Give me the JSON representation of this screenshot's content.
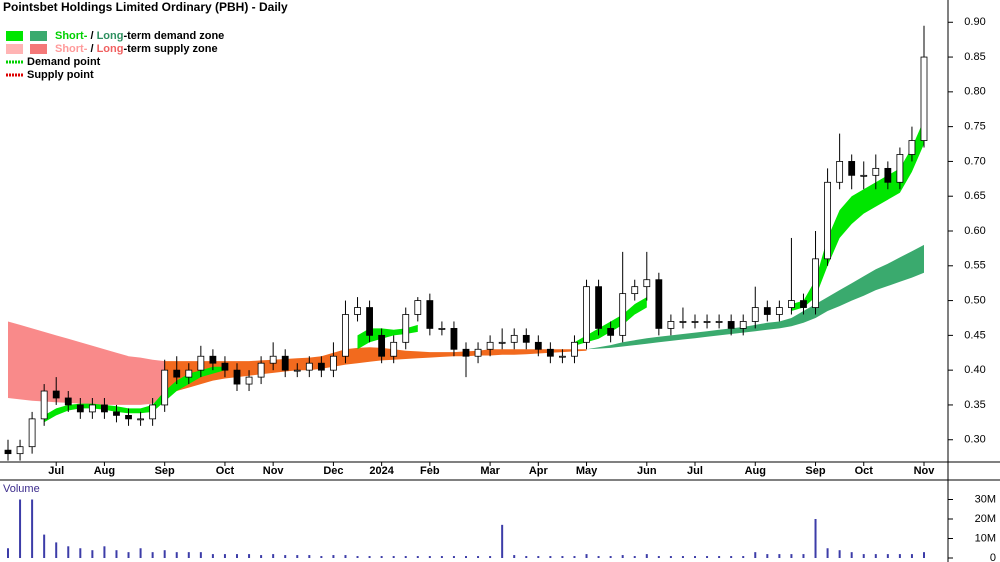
{
  "chart_data": {
    "type": "candlestick",
    "title": "Pointsbet Holdings Limited Ordinary (PBH) - Daily",
    "categories": [
      null,
      null,
      null,
      null,
      "Jul",
      null,
      null,
      null,
      "Aug",
      null,
      null,
      null,
      null,
      "Sep",
      null,
      null,
      null,
      null,
      "Oct",
      null,
      null,
      null,
      "Nov",
      null,
      null,
      null,
      null,
      "Dec",
      null,
      null,
      null,
      "2024",
      null,
      null,
      null,
      "Feb",
      null,
      null,
      null,
      null,
      "Mar",
      null,
      null,
      null,
      "Apr",
      null,
      null,
      null,
      "May",
      null,
      null,
      null,
      null,
      "Jun",
      null,
      null,
      null,
      "Jul",
      null,
      null,
      null,
      null,
      "Aug",
      null,
      null,
      null,
      null,
      "Sep",
      null,
      null,
      null,
      "Oct",
      null,
      null,
      null,
      null,
      "Nov"
    ],
    "open": [
      0.285,
      0.28,
      0.29,
      0.33,
      0.37,
      0.36,
      0.35,
      0.34,
      0.35,
      0.34,
      0.335,
      0.33,
      0.33,
      0.35,
      0.4,
      0.39,
      0.4,
      0.42,
      0.41,
      0.4,
      0.38,
      0.39,
      0.41,
      0.42,
      0.4,
      0.4,
      0.41,
      0.4,
      0.42,
      0.48,
      0.49,
      0.45,
      0.42,
      0.44,
      0.48,
      0.5,
      0.46,
      0.46,
      0.43,
      0.42,
      0.43,
      0.44,
      0.44,
      0.45,
      0.44,
      0.43,
      0.42,
      0.42,
      0.44,
      0.52,
      0.46,
      0.45,
      0.51,
      0.52,
      0.53,
      0.46,
      0.47,
      0.47,
      0.47,
      0.47,
      0.47,
      0.46,
      0.47,
      0.49,
      0.48,
      0.49,
      0.5,
      0.49,
      0.56,
      0.67,
      0.7,
      0.68,
      0.68,
      0.69,
      0.67,
      0.71,
      0.73
    ],
    "high": [
      0.3,
      0.3,
      0.34,
      0.38,
      0.39,
      0.37,
      0.36,
      0.36,
      0.36,
      0.35,
      0.345,
      0.34,
      0.36,
      0.415,
      0.42,
      0.41,
      0.435,
      0.43,
      0.42,
      0.41,
      0.4,
      0.42,
      0.44,
      0.43,
      0.41,
      0.42,
      0.42,
      0.44,
      0.5,
      0.505,
      0.5,
      0.46,
      0.45,
      0.49,
      0.505,
      0.51,
      0.47,
      0.47,
      0.44,
      0.44,
      0.45,
      0.46,
      0.46,
      0.46,
      0.45,
      0.44,
      0.43,
      0.45,
      0.53,
      0.53,
      0.47,
      0.57,
      0.53,
      0.57,
      0.54,
      0.48,
      0.49,
      0.48,
      0.48,
      0.48,
      0.48,
      0.48,
      0.52,
      0.5,
      0.5,
      0.59,
      0.51,
      0.6,
      0.69,
      0.74,
      0.71,
      0.7,
      0.71,
      0.7,
      0.72,
      0.75,
      0.895
    ],
    "low": [
      0.27,
      0.27,
      0.28,
      0.32,
      0.35,
      0.34,
      0.33,
      0.33,
      0.33,
      0.325,
      0.32,
      0.32,
      0.32,
      0.34,
      0.38,
      0.38,
      0.39,
      0.4,
      0.39,
      0.37,
      0.37,
      0.38,
      0.4,
      0.39,
      0.39,
      0.39,
      0.39,
      0.39,
      0.41,
      0.47,
      0.44,
      0.41,
      0.41,
      0.43,
      0.47,
      0.45,
      0.45,
      0.42,
      0.39,
      0.41,
      0.42,
      0.43,
      0.43,
      0.43,
      0.42,
      0.41,
      0.41,
      0.41,
      0.43,
      0.45,
      0.44,
      0.44,
      0.5,
      0.5,
      0.45,
      0.45,
      0.46,
      0.46,
      0.46,
      0.46,
      0.45,
      0.45,
      0.46,
      0.47,
      0.47,
      0.48,
      0.48,
      0.48,
      0.55,
      0.66,
      0.66,
      0.66,
      0.66,
      0.66,
      0.66,
      0.7,
      0.72
    ],
    "close": [
      0.28,
      0.29,
      0.33,
      0.37,
      0.36,
      0.35,
      0.34,
      0.35,
      0.34,
      0.335,
      0.33,
      0.33,
      0.35,
      0.4,
      0.39,
      0.4,
      0.42,
      0.41,
      0.4,
      0.38,
      0.39,
      0.41,
      0.42,
      0.4,
      0.4,
      0.41,
      0.4,
      0.42,
      0.48,
      0.49,
      0.45,
      0.42,
      0.44,
      0.48,
      0.5,
      0.46,
      0.46,
      0.43,
      0.42,
      0.43,
      0.44,
      0.44,
      0.45,
      0.44,
      0.43,
      0.42,
      0.42,
      0.44,
      0.52,
      0.46,
      0.45,
      0.51,
      0.52,
      0.53,
      0.46,
      0.47,
      0.47,
      0.47,
      0.47,
      0.47,
      0.46,
      0.47,
      0.49,
      0.48,
      0.49,
      0.5,
      0.49,
      0.56,
      0.67,
      0.7,
      0.68,
      0.68,
      0.69,
      0.67,
      0.71,
      0.73,
      0.85
    ],
    "up_color": "#ffffff",
    "down_color": "#000000",
    "bands": [
      {
        "color": "#f98a8a",
        "upper": [
          0.47,
          0.465,
          0.46,
          0.455,
          0.45,
          0.445,
          0.44,
          0.435,
          0.43,
          0.425,
          0.42,
          0.418,
          0.415,
          0.413,
          null,
          null,
          null,
          null,
          null,
          null,
          null,
          null,
          null,
          null,
          null,
          null,
          null,
          null,
          null,
          null,
          null,
          null,
          null,
          null,
          null,
          null,
          null,
          null,
          null,
          null,
          null,
          null,
          null,
          null,
          null,
          null,
          null,
          null,
          null,
          null,
          null,
          null,
          null,
          null,
          null,
          null,
          null,
          null,
          null,
          null,
          null,
          null,
          null,
          null,
          null,
          null,
          null,
          null,
          null,
          null,
          null,
          null,
          null,
          null,
          null,
          null,
          null
        ],
        "lower": [
          0.36,
          0.358,
          0.356,
          0.355,
          0.354,
          0.353,
          0.352,
          0.351,
          0.35,
          0.35,
          0.35,
          0.35,
          0.352,
          0.36,
          null,
          null,
          null,
          null,
          null,
          null,
          null,
          null,
          null,
          null,
          null,
          null,
          null,
          null,
          null,
          null,
          null,
          null,
          null,
          null,
          null,
          null,
          null,
          null,
          null,
          null,
          null,
          null,
          null,
          null,
          null,
          null,
          null,
          null,
          null,
          null,
          null,
          null,
          null,
          null,
          null,
          null,
          null,
          null,
          null,
          null,
          null,
          null,
          null,
          null,
          null,
          null,
          null,
          null,
          null,
          null,
          null,
          null,
          null,
          null,
          null,
          null,
          null
        ]
      },
      {
        "color": "#f26a1e",
        "upper": [
          null,
          null,
          null,
          null,
          null,
          null,
          null,
          null,
          null,
          null,
          null,
          null,
          null,
          0.413,
          0.413,
          0.413,
          0.413,
          0.413,
          0.413,
          0.413,
          0.413,
          0.414,
          0.415,
          0.416,
          0.417,
          0.418,
          0.42,
          0.425,
          0.43,
          0.432,
          0.433,
          0.432,
          0.43,
          0.428,
          0.427,
          0.426,
          0.426,
          0.426,
          0.427,
          0.428,
          0.43,
          0.43,
          0.43,
          0.43,
          0.43,
          0.43,
          0.43,
          0.43,
          0.43,
          null,
          null,
          null,
          null,
          null,
          null,
          null,
          null,
          null,
          null,
          null,
          null,
          null,
          null,
          null,
          null,
          null,
          null,
          null,
          null,
          null,
          null,
          null,
          null,
          null,
          null,
          null,
          null
        ],
        "lower": [
          null,
          null,
          null,
          null,
          null,
          null,
          null,
          null,
          null,
          null,
          null,
          null,
          null,
          0.36,
          0.37,
          0.375,
          0.38,
          0.385,
          0.388,
          0.39,
          0.392,
          0.394,
          0.396,
          0.398,
          0.4,
          0.4,
          0.402,
          0.405,
          0.408,
          0.41,
          0.412,
          0.414,
          0.415,
          0.416,
          0.417,
          0.418,
          0.419,
          0.42,
          0.42,
          0.421,
          0.421,
          0.422,
          0.422,
          0.423,
          0.424,
          0.425,
          0.426,
          0.427,
          0.428,
          null,
          null,
          null,
          null,
          null,
          null,
          null,
          null,
          null,
          null,
          null,
          null,
          null,
          null,
          null,
          null,
          null,
          null,
          null,
          null,
          null,
          null,
          null,
          null,
          null,
          null,
          null,
          null
        ]
      },
      {
        "color": "#3aaa6e",
        "upper": [
          null,
          null,
          null,
          null,
          null,
          null,
          null,
          null,
          null,
          null,
          null,
          null,
          null,
          null,
          null,
          null,
          null,
          null,
          null,
          null,
          null,
          null,
          null,
          null,
          null,
          null,
          null,
          null,
          null,
          null,
          null,
          null,
          null,
          null,
          null,
          null,
          null,
          null,
          null,
          null,
          null,
          null,
          null,
          null,
          null,
          null,
          null,
          null,
          0.43,
          0.433,
          0.436,
          0.44,
          0.443,
          0.446,
          0.448,
          0.45,
          0.452,
          0.454,
          0.456,
          0.458,
          0.46,
          0.462,
          0.465,
          0.468,
          0.47,
          0.475,
          0.485,
          0.495,
          0.505,
          0.515,
          0.525,
          0.535,
          0.545,
          0.553,
          0.562,
          0.571,
          0.58
        ],
        "lower": [
          null,
          null,
          null,
          null,
          null,
          null,
          null,
          null,
          null,
          null,
          null,
          null,
          null,
          null,
          null,
          null,
          null,
          null,
          null,
          null,
          null,
          null,
          null,
          null,
          null,
          null,
          null,
          null,
          null,
          null,
          null,
          null,
          null,
          null,
          null,
          null,
          null,
          null,
          null,
          null,
          null,
          null,
          null,
          null,
          null,
          null,
          null,
          null,
          0.43,
          0.431,
          0.432,
          0.434,
          0.436,
          0.438,
          0.44,
          0.442,
          0.444,
          0.446,
          0.448,
          0.45,
          0.452,
          0.454,
          0.456,
          0.458,
          0.46,
          0.463,
          0.468,
          0.475,
          0.485,
          0.492,
          0.5,
          0.507,
          0.515,
          0.521,
          0.527,
          0.533,
          0.54
        ]
      },
      {
        "color": "#00e600",
        "upper": [
          null,
          null,
          null,
          0.335,
          0.345,
          0.35,
          0.352,
          0.352,
          0.35,
          0.348,
          0.345,
          0.345,
          0.35,
          0.37,
          0.385,
          0.395,
          0.4,
          0.405,
          0.405,
          null,
          null,
          null,
          null,
          null,
          null,
          null,
          null,
          null,
          null,
          0.45,
          0.46,
          0.46,
          0.458,
          0.46,
          0.465,
          null,
          null,
          null,
          null,
          null,
          null,
          null,
          null,
          null,
          null,
          null,
          null,
          0.44,
          0.45,
          0.46,
          0.47,
          0.48,
          0.495,
          0.505,
          null,
          null,
          null,
          null,
          null,
          null,
          null,
          null,
          null,
          null,
          null,
          0.495,
          0.5,
          0.53,
          0.59,
          0.63,
          0.65,
          0.66,
          0.67,
          0.68,
          0.69,
          0.72,
          0.76
        ],
        "lower": [
          null,
          null,
          null,
          0.325,
          0.335,
          0.342,
          0.345,
          0.345,
          0.343,
          0.34,
          0.338,
          0.338,
          0.34,
          0.355,
          0.37,
          0.38,
          0.39,
          0.395,
          0.4,
          null,
          null,
          null,
          null,
          null,
          null,
          null,
          null,
          null,
          null,
          0.43,
          0.44,
          0.445,
          0.45,
          0.452,
          0.455,
          null,
          null,
          null,
          null,
          null,
          null,
          null,
          null,
          null,
          null,
          null,
          null,
          0.435,
          0.44,
          0.445,
          0.455,
          0.465,
          0.48,
          0.49,
          null,
          null,
          null,
          null,
          null,
          null,
          null,
          null,
          null,
          null,
          null,
          0.485,
          0.49,
          0.505,
          0.55,
          0.59,
          0.61,
          0.625,
          0.635,
          0.645,
          0.655,
          0.685,
          0.725
        ]
      }
    ],
    "legend": [
      {
        "swatches": [
          "#00e600",
          "#3aaa6e"
        ],
        "texts": [
          {
            "text": "Short-",
            "color": "#00d000"
          },
          {
            "text": " / "
          },
          {
            "text": "Long",
            "color": "#2e9060"
          },
          {
            "text": "-term demand zone"
          }
        ]
      },
      {
        "swatches": [
          "#ffb4b4",
          "#f47878"
        ],
        "texts": [
          {
            "text": "Short-",
            "color": "#ff9a9a"
          },
          {
            "text": " / "
          },
          {
            "text": "Long",
            "color": "#f06060"
          },
          {
            "text": "-term supply zone"
          }
        ]
      },
      {
        "line": "#00d000",
        "texts": [
          {
            "text": "Demand point"
          }
        ]
      },
      {
        "line": "#dd0000",
        "texts": [
          {
            "text": "Supply point"
          }
        ]
      }
    ],
    "ylim": [
      0.268,
      0.932
    ],
    "yticks": [
      {
        "value": 0.3,
        "label": "0.30"
      },
      0.35,
      {
        "value": 0.4,
        "label": "0.40"
      },
      0.45,
      {
        "value": 0.5,
        "label": "0.50"
      },
      0.55,
      {
        "value": 0.6,
        "label": "0.60"
      },
      0.65,
      {
        "value": 0.7,
        "label": "0.70"
      },
      0.75,
      {
        "value": 0.8,
        "label": "0.80"
      },
      0.85,
      {
        "value": 0.9,
        "label": "0.90"
      }
    ],
    "volume": {
      "title": "Volume",
      "color": "#3c3ca8",
      "values": [
        5000000,
        30000000,
        30000000,
        12000000,
        8000000,
        6000000,
        5000000,
        4000000,
        6000000,
        4000000,
        3000000,
        5000000,
        3000000,
        4000000,
        3000000,
        3000000,
        3000000,
        2000000,
        2000000,
        2000000,
        2000000,
        1500000,
        2000000,
        1500000,
        1500000,
        1500000,
        1000000,
        1500000,
        1500000,
        1000000,
        1000000,
        1000000,
        1000000,
        1000000,
        1000000,
        1000000,
        1000000,
        1000000,
        1000000,
        1000000,
        1000000,
        17000000,
        1500000,
        1000000,
        1000000,
        1000000,
        1000000,
        1000000,
        2000000,
        1000000,
        1000000,
        1500000,
        1000000,
        2000000,
        1000000,
        1000000,
        1000000,
        1000000,
        1000000,
        1000000,
        1000000,
        1000000,
        3000000,
        2000000,
        2000000,
        2000000,
        2000000,
        20000000,
        5000000,
        4000000,
        3000000,
        2000000,
        2000000,
        2000000,
        2000000,
        2000000,
        3000000
      ],
      "ylim": [
        0,
        40000000
      ],
      "yticks": [
        0,
        {
          "value": 10000000,
          "label": "10M"
        },
        {
          "value": 20000000,
          "label": "20M"
        },
        {
          "value": 30000000,
          "label": "30M"
        }
      ]
    }
  }
}
